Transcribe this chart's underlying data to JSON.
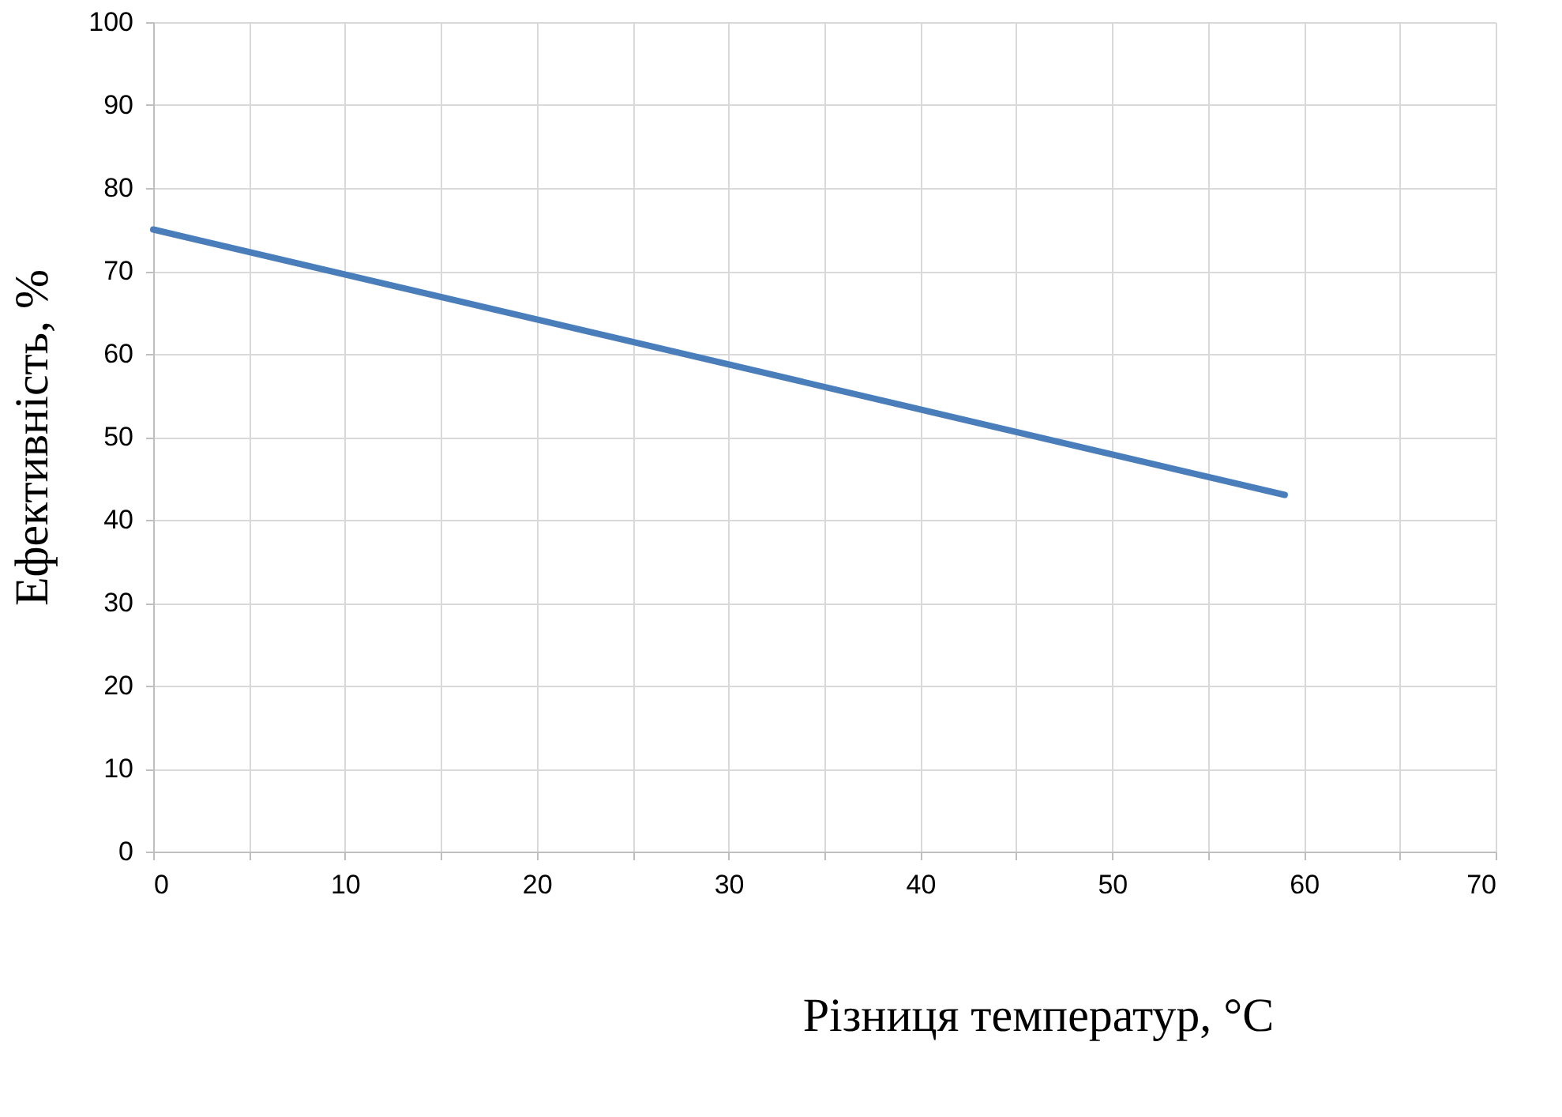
{
  "chart_data": {
    "type": "line",
    "xlabel": "Різниця температур, °C",
    "ylabel": "Ефективність, %",
    "x": [
      0,
      59
    ],
    "series": [
      {
        "color": "#4a7ebb",
        "values": [
          75,
          43
        ]
      }
    ],
    "xlim": [
      0,
      70
    ],
    "ylim": [
      0,
      100
    ],
    "xticks": [
      0,
      {
        "value": 5,
        "label": null
      },
      10,
      {
        "value": 15,
        "label": null
      },
      20,
      {
        "value": 25,
        "label": null
      },
      30,
      {
        "value": 35,
        "label": null
      },
      40,
      {
        "value": 45,
        "label": null
      },
      50,
      {
        "value": 55,
        "label": null
      },
      60,
      {
        "value": 65,
        "label": null
      },
      70
    ],
    "yticks": [
      0,
      10,
      20,
      30,
      40,
      50,
      60,
      70,
      80,
      90,
      100
    ],
    "grid": true,
    "marker": "none",
    "line_style": "solid"
  }
}
